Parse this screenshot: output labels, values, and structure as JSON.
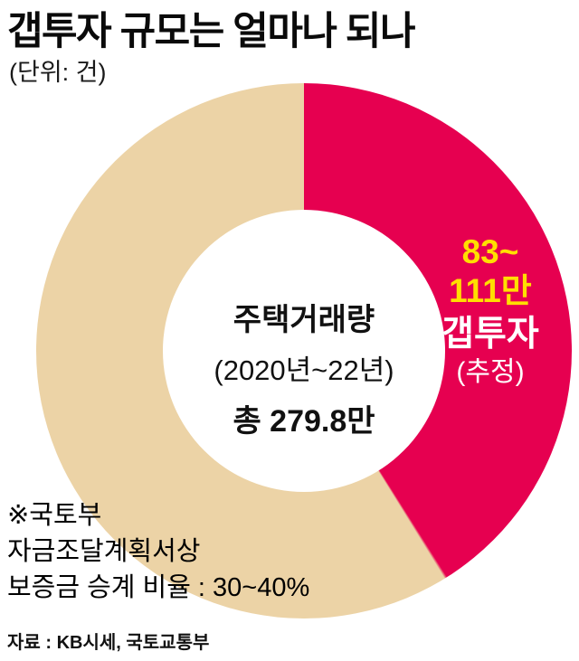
{
  "page": {
    "title": "갭투자 규모는 얼마나 되나",
    "unit": "(단위: 건)",
    "source": "자료 : KB시세, 국토교통부"
  },
  "center": {
    "line1": "주택거래량",
    "line2": "(2020년~22년)",
    "line3": "총 279.8만"
  },
  "segment_label": {
    "range_line1": "83~",
    "range_line2": "111만",
    "name": "갭투자",
    "qualifier": "(추정)"
  },
  "annotation": {
    "lines": [
      "※국토부",
      "자금조달계획서상",
      "보증금 승계 비율 : 30~40%"
    ]
  },
  "chart_data": {
    "type": "pie",
    "subtype": "donut",
    "title": "갭투자 규모는 얼마나 되나",
    "unit": "건",
    "total": {
      "label": "주택거래량",
      "period": "2020년~22년",
      "value": 279.8,
      "value_unit": "만",
      "value_label": "총 279.8만"
    },
    "segments": [
      {
        "name": "갭투자(추정)",
        "label": "83~111만",
        "value_min": 83,
        "value_max": 111,
        "value_unit": "만",
        "color": "#e60050",
        "start_deg": 0,
        "sweep_deg": 148
      },
      {
        "name": "",
        "label": "",
        "color": "#ecd3a6",
        "start_deg": 148,
        "sweep_deg": 212
      }
    ],
    "colors": {
      "highlight": "#e60050",
      "base": "#ecd3a6",
      "range_text": "#ffdf00",
      "segment_text": "#ffffff"
    },
    "legend": "none",
    "grid": "off",
    "note": "※국토부 자금조달계획서상 보증금 승계 비율 : 30~40%",
    "source": "자료 : KB시세, 국토교통부"
  }
}
